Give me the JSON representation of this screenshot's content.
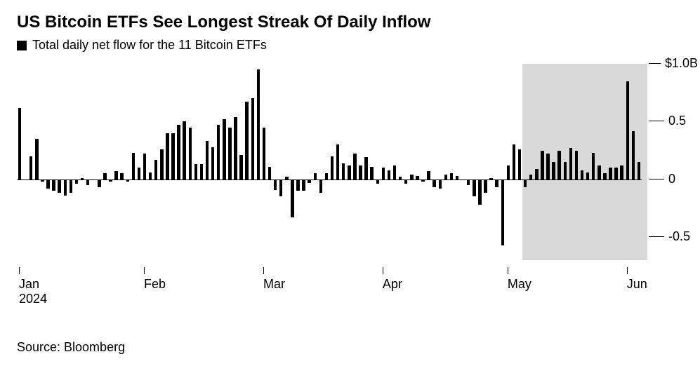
{
  "title": "US Bitcoin ETFs See Longest Streak Of Daily Inflow",
  "legend_label": "Total daily net flow for the 11 Bitcoin ETFs",
  "source": "Source: Bloomberg",
  "chart": {
    "type": "bar",
    "ylim": [
      -0.7,
      1.0
    ],
    "yticks": [
      {
        "v": 1.0,
        "label": "$1.0B"
      },
      {
        "v": 0.5,
        "label": "0.5"
      },
      {
        "v": 0.0,
        "label": "0"
      },
      {
        "v": -0.5,
        "label": "-0.5"
      }
    ],
    "xticks": [
      {
        "i": 0,
        "label": "Jan",
        "sub": "2024"
      },
      {
        "i": 22,
        "label": "Feb"
      },
      {
        "i": 43,
        "label": "Mar"
      },
      {
        "i": 64,
        "label": "Apr"
      },
      {
        "i": 86,
        "label": "May"
      },
      {
        "i": 107,
        "label": "Jun"
      }
    ],
    "highlight": {
      "start": 89,
      "end": 110
    },
    "bar_color": "#000000",
    "highlight_color": "#d9d9d9",
    "background_color": "#ffffff",
    "label_fontsize": 18,
    "title_fontsize": 24,
    "values": [
      0.62,
      0.0,
      0.2,
      0.35,
      -0.02,
      -0.08,
      -0.1,
      -0.12,
      -0.14,
      -0.12,
      -0.04,
      0.01,
      -0.05,
      0.0,
      -0.07,
      0.05,
      -0.02,
      0.07,
      0.05,
      -0.02,
      0.23,
      0.1,
      0.22,
      0.06,
      0.17,
      0.26,
      0.4,
      0.4,
      0.47,
      0.5,
      0.45,
      0.13,
      0.13,
      0.33,
      0.28,
      0.47,
      0.52,
      0.45,
      0.54,
      0.21,
      0.67,
      0.7,
      0.95,
      0.45,
      0.11,
      -0.09,
      -0.15,
      0.02,
      -0.33,
      -0.1,
      -0.1,
      -0.03,
      0.05,
      -0.12,
      0.05,
      0.2,
      0.3,
      0.14,
      0.12,
      0.22,
      0.12,
      0.19,
      0.11,
      -0.04,
      0.1,
      0.08,
      0.12,
      0.02,
      -0.04,
      0.04,
      0.03,
      -0.02,
      0.07,
      -0.07,
      -0.08,
      0.04,
      0.05,
      0.03,
      -0.01,
      -0.05,
      -0.15,
      -0.22,
      -0.12,
      0.01,
      -0.07,
      -0.57,
      0.12,
      0.3,
      0.26,
      -0.07,
      0.04,
      0.09,
      0.25,
      0.22,
      0.15,
      0.25,
      0.15,
      0.27,
      0.25,
      0.08,
      0.06,
      0.23,
      0.12,
      0.05,
      0.1,
      0.1,
      0.12,
      0.85,
      0.42,
      0.15
    ]
  }
}
